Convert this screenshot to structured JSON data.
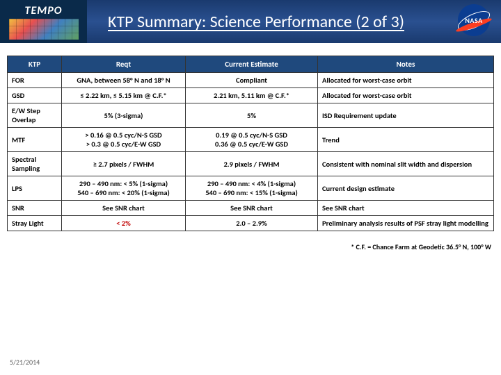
{
  "header": {
    "logo_text": "TEMPO",
    "title": "KTP Summary: Science Performance (2 of 3)",
    "nasa_text": "NASA"
  },
  "table": {
    "columns": [
      "KTP",
      "Reqt",
      "Current Estimate",
      "Notes"
    ],
    "rows": [
      {
        "ktp": "FOR",
        "reqt": "GNA, between 58° N and 18° N",
        "est": "Compliant",
        "notes": "Allocated for worst-case orbit"
      },
      {
        "ktp": "GSD",
        "reqt": "≤ 2.22 km, ≤ 5.15 km @ C.F.*",
        "est": "2.21 km, 5.11 km @ C.F.*",
        "notes": "Allocated for worst-case orbit"
      },
      {
        "ktp": "E/W Step Overlap",
        "reqt": "5% (3-sigma)",
        "est": "5%",
        "notes": "ISD Requirement update"
      },
      {
        "ktp": "MTF",
        "reqt": "> 0.16 @ 0.5 cyc/N-S GSD\n> 0.3 @ 0.5 cyc/E-W GSD",
        "est": "0.19 @ 0.5 cyc/N-S GSD\n0.36 @ 0.5 cyc/E-W GSD",
        "notes": "Trend"
      },
      {
        "ktp": "Spectral Sampling",
        "reqt": "≥ 2.7 pixels / FWHM",
        "est": "2.9 pixels / FWHM",
        "notes": "Consistent with nominal slit width and dispersion"
      },
      {
        "ktp": "LPS",
        "reqt": "290 – 490 nm: < 5% (1-sigma)\n540 – 690 nm: < 20% (1-sigma)",
        "est": "290 – 490 nm: < 4% (1-sigma)\n540 – 690 nm: < 15% (1-sigma)",
        "notes": "Current design estimate"
      },
      {
        "ktp": "SNR",
        "reqt": "See SNR chart",
        "est": "See SNR chart",
        "notes": "See SNR chart"
      },
      {
        "ktp": "Stray Light",
        "reqt": "< 2%",
        "reqt_red": true,
        "est": "2.0 – 2.9%",
        "notes": "Preliminary analysis results of PSF stray light modelling"
      }
    ]
  },
  "footnote": "* C.F. = Chance Farm at Geodetic 36.5° N, 100° W",
  "date": "5/21/2014",
  "colors": {
    "header_gradient_top": "#1a3a6e",
    "header_gradient_mid": "#2a5090",
    "table_header_bg": "#1f497d",
    "red_text": "#c00000",
    "nasa_blue": "#0b3d91",
    "nasa_red": "#fc3d21"
  }
}
